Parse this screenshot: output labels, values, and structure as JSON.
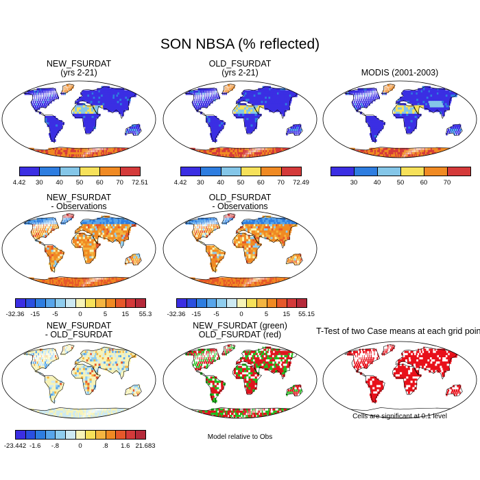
{
  "figure": {
    "title": "SON NBSA (% reflected)"
  },
  "palettes": {
    "abs": [
      "#3b2ee3",
      "#2e7de0",
      "#84c6e8",
      "#f6e15a",
      "#f08a23",
      "#d43a3a"
    ],
    "diff": [
      "#3b2ee3",
      "#2a4fe0",
      "#2e7de0",
      "#58a5ea",
      "#8fcdee",
      "#cde9f2",
      "#f7f3b7",
      "#f6e15a",
      "#f4b541",
      "#f08a23",
      "#e6582a",
      "#d43a3a",
      "#b52a3a"
    ]
  },
  "panels": [
    {
      "id": "new",
      "title": [
        "NEW_FSURDAT",
        "(yrs 2-21)"
      ],
      "kind": "abs",
      "colorbar": {
        "labels": [
          "4.42",
          "30",
          "40",
          "50",
          "60",
          "70",
          "72.51"
        ]
      }
    },
    {
      "id": "old",
      "title": [
        "OLD_FSURDAT",
        "(yrs 2-21)"
      ],
      "kind": "abs",
      "colorbar": {
        "labels": [
          "4.42",
          "30",
          "40",
          "50",
          "60",
          "70",
          "72.49"
        ]
      }
    },
    {
      "id": "modis",
      "title": [
        "MODIS (2001-2003)",
        ""
      ],
      "kind": "obs",
      "colorbar": {
        "labels": [
          "",
          "30",
          "40",
          "50",
          "60",
          "70",
          ""
        ]
      }
    },
    {
      "id": "new-obs",
      "title": [
        "NEW_FSURDAT",
        "- Observations"
      ],
      "kind": "diff",
      "colorbar": {
        "labels": [
          "-32.36",
          "-15",
          "-5",
          "0",
          "5",
          "15",
          "55.3"
        ]
      }
    },
    {
      "id": "old-obs",
      "title": [
        "OLD_FSURDAT",
        "- Observations"
      ],
      "kind": "diff",
      "colorbar": {
        "labels": [
          "-32.36",
          "-15",
          "-5",
          "0",
          "5",
          "15",
          "55.15"
        ]
      }
    },
    {
      "id": "new-old",
      "title": [
        "NEW_FSURDAT",
        "- OLD_FSURDAT"
      ],
      "kind": "diff2",
      "colorbar": {
        "labels": [
          "-23.442",
          "-1.6",
          "-.8",
          "0",
          ".8",
          "1.6",
          "21.683"
        ]
      }
    },
    {
      "id": "green-red",
      "title": [
        "NEW_FSURDAT (green)",
        "OLD_FSURDAT (red)"
      ],
      "kind": "gr",
      "note": "Model relative to Obs"
    },
    {
      "id": "ttest",
      "title": [
        "T-Test of two Case means at each grid point",
        ""
      ],
      "kind": "ttest",
      "note": "Cells are significant at 0.1 level"
    }
  ]
}
